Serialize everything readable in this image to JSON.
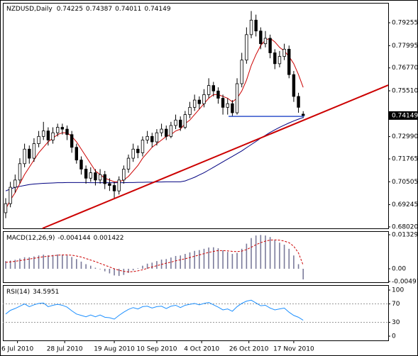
{
  "chart_data": [
    {
      "type": "candlestick",
      "title": "NZDUSD,Daily",
      "candle_color": "#000000",
      "open": [
        0.688,
        0.693,
        0.702,
        0.706,
        0.715,
        0.723,
        0.718,
        0.726,
        0.73,
        0.733,
        0.728,
        0.732,
        0.735,
        0.734,
        0.731,
        0.724,
        0.717,
        0.712,
        0.707,
        0.71,
        0.706,
        0.709,
        0.704,
        0.703,
        0.7,
        0.706,
        0.712,
        0.718,
        0.723,
        0.721,
        0.728,
        0.73,
        0.727,
        0.732,
        0.734,
        0.73,
        0.736,
        0.739,
        0.735,
        0.742,
        0.746,
        0.75,
        0.748,
        0.753,
        0.758,
        0.755,
        0.751,
        0.746,
        0.748,
        0.743,
        0.759,
        0.772,
        0.786,
        0.794,
        0.788,
        0.781,
        0.784,
        0.776,
        0.77,
        0.774,
        0.778,
        0.764,
        0.752,
        0.74225
      ],
      "high": [
        0.696,
        0.705,
        0.709,
        0.718,
        0.726,
        0.725,
        0.729,
        0.733,
        0.738,
        0.735,
        0.735,
        0.737,
        0.737,
        0.736,
        0.733,
        0.726,
        0.719,
        0.714,
        0.713,
        0.712,
        0.712,
        0.711,
        0.707,
        0.705,
        0.708,
        0.714,
        0.72,
        0.726,
        0.725,
        0.73,
        0.733,
        0.732,
        0.734,
        0.737,
        0.736,
        0.738,
        0.742,
        0.741,
        0.744,
        0.749,
        0.753,
        0.752,
        0.756,
        0.762,
        0.76,
        0.757,
        0.753,
        0.751,
        0.75,
        0.762,
        0.776,
        0.79,
        0.799,
        0.797,
        0.79,
        0.788,
        0.786,
        0.778,
        0.777,
        0.781,
        0.78,
        0.766,
        0.754,
        0.74387
      ],
      "low": [
        0.685,
        0.691,
        0.699,
        0.704,
        0.713,
        0.715,
        0.716,
        0.724,
        0.728,
        0.725,
        0.726,
        0.73,
        0.731,
        0.728,
        0.721,
        0.715,
        0.709,
        0.704,
        0.705,
        0.703,
        0.704,
        0.701,
        0.7,
        0.696,
        0.698,
        0.704,
        0.71,
        0.716,
        0.718,
        0.719,
        0.726,
        0.724,
        0.725,
        0.73,
        0.728,
        0.729,
        0.734,
        0.733,
        0.734,
        0.74,
        0.744,
        0.745,
        0.746,
        0.751,
        0.752,
        0.748,
        0.742,
        0.742,
        0.741,
        0.742,
        0.757,
        0.77,
        0.784,
        0.785,
        0.778,
        0.779,
        0.773,
        0.767,
        0.768,
        0.772,
        0.762,
        0.749,
        0.743,
        0.74011
      ],
      "close": [
        0.693,
        0.702,
        0.706,
        0.715,
        0.723,
        0.718,
        0.726,
        0.73,
        0.733,
        0.728,
        0.732,
        0.735,
        0.734,
        0.731,
        0.724,
        0.717,
        0.712,
        0.707,
        0.71,
        0.706,
        0.709,
        0.704,
        0.703,
        0.7,
        0.706,
        0.712,
        0.718,
        0.723,
        0.721,
        0.728,
        0.73,
        0.727,
        0.732,
        0.734,
        0.73,
        0.736,
        0.739,
        0.735,
        0.742,
        0.746,
        0.75,
        0.748,
        0.753,
        0.758,
        0.755,
        0.751,
        0.746,
        0.748,
        0.743,
        0.759,
        0.772,
        0.786,
        0.794,
        0.788,
        0.781,
        0.784,
        0.776,
        0.77,
        0.774,
        0.778,
        0.764,
        0.752,
        0.746,
        0.74149
      ],
      "series": [
        {
          "color": "#000080",
          "values": [
            0.7,
            0.701,
            0.702,
            0.7025,
            0.703,
            0.7035,
            0.7038,
            0.704,
            0.7042,
            0.7043,
            0.7044,
            0.7045,
            0.7045,
            0.7046,
            0.7046,
            0.7046,
            0.7046,
            0.7046,
            0.7045,
            0.7045,
            0.7045,
            0.7045,
            0.7045,
            0.7045,
            0.7045,
            0.7045,
            0.7046,
            0.7046,
            0.7047,
            0.7047,
            0.7048,
            0.7048,
            0.7049,
            0.7049,
            0.705,
            0.705,
            0.705,
            0.705,
            0.7055,
            0.7065,
            0.7075,
            0.7088,
            0.71,
            0.7115,
            0.713,
            0.7145,
            0.716,
            0.7175,
            0.719,
            0.7205,
            0.722,
            0.7238,
            0.7255,
            0.7272,
            0.729,
            0.7306,
            0.7322,
            0.7336,
            0.735,
            0.7362,
            0.7374,
            0.7385,
            0.7395,
            0.7404
          ]
        },
        {
          "color": "#cc0000",
          "values": [
            0.69,
            0.695,
            0.699,
            0.704,
            0.709,
            0.713,
            0.717,
            0.721,
            0.724,
            0.727,
            0.729,
            0.731,
            0.732,
            0.732,
            0.73,
            0.727,
            0.723,
            0.719,
            0.715,
            0.711,
            0.709,
            0.707,
            0.706,
            0.705,
            0.705,
            0.706,
            0.708,
            0.711,
            0.714,
            0.718,
            0.721,
            0.724,
            0.726,
            0.728,
            0.73,
            0.731,
            0.733,
            0.734,
            0.737,
            0.739,
            0.742,
            0.745,
            0.748,
            0.751,
            0.753,
            0.753,
            0.752,
            0.751,
            0.749,
            0.751,
            0.755,
            0.761,
            0.769,
            0.775,
            0.78,
            0.783,
            0.784,
            0.782,
            0.779,
            0.777,
            0.774,
            0.77,
            0.764,
            0.757
          ]
        }
      ],
      "trendline": {
        "color": "#cc0000",
        "x": [
          7.8,
          81
        ],
        "y": [
          0.6794,
          0.7582
        ]
      },
      "support": {
        "color": "#3355cc",
        "x": [
          47.2,
          63.2
        ],
        "y": [
          0.741,
          0.741
        ]
      },
      "xlim": [
        -0.6,
        81
      ],
      "ylim": [
        0.6794,
        0.8035
      ],
      "yticks": [
        0.79255,
        0.77995,
        {
          "value": 0.7677,
          "label": "0.76770"
        },
        {
          "value": 0.7551,
          "label": "0.75510"
        },
        {
          "value": 0.7299,
          "label": "0.72990"
        },
        0.71765,
        0.70505,
        0.69245,
        {
          "value": 0.6802,
          "label": "0.68020"
        }
      ],
      "xticks": [
        {
          "value": 2.5,
          "label": "6 Jul 2010"
        },
        {
          "value": 12.5,
          "label": "28 Jul 2010"
        },
        {
          "value": 23,
          "label": "19 Aug 2010"
        },
        {
          "value": 32,
          "label": "10 Sep 2010"
        },
        {
          "value": 41.5,
          "label": "4 Oct 2010"
        },
        {
          "value": 51.5,
          "label": "26 Oct 2010"
        },
        {
          "value": 61,
          "label": "17 Nov 2010"
        }
      ]
    },
    {
      "type": "macd",
      "title": "MACD(12,26,9)",
      "histogram": {
        "color": "#7a7a9a",
        "values": [
          0.003,
          0.0032,
          0.0035,
          0.004,
          0.0045,
          0.0045,
          0.0048,
          0.0052,
          0.0055,
          0.0053,
          0.0054,
          0.0056,
          0.0055,
          0.0052,
          0.0046,
          0.0038,
          0.0028,
          0.0018,
          0.0012,
          0.0004,
          -0.0002,
          -0.001,
          -0.0018,
          -0.0026,
          -0.0028,
          -0.0024,
          -0.0016,
          -0.0006,
          0.0002,
          0.0012,
          0.002,
          0.0024,
          0.003,
          0.0036,
          0.0038,
          0.0044,
          0.005,
          0.0052,
          0.0058,
          0.0064,
          0.007,
          0.0073,
          0.0078,
          0.0083,
          0.0084,
          0.008,
          0.0072,
          0.0066,
          0.0058,
          0.0062,
          0.0078,
          0.0098,
          0.012,
          0.013,
          0.0132,
          0.013,
          0.0124,
          0.0112,
          0.0102,
          0.0094,
          0.0078,
          0.0052,
          0.0018,
          -0.004144
        ]
      },
      "signal": {
        "color": "#cc0000",
        "values": [
          0.0025,
          0.0027,
          0.0029,
          0.0032,
          0.0035,
          0.0038,
          0.0041,
          0.0044,
          0.0047,
          0.0049,
          0.0051,
          0.0053,
          0.0054,
          0.0054,
          0.0053,
          0.005,
          0.0046,
          0.004,
          0.0034,
          0.0028,
          0.0021,
          0.0014,
          0.0007,
          0.0,
          -0.0006,
          -0.001,
          -0.0012,
          -0.0011,
          -0.0008,
          -0.0004,
          0.0002,
          0.0007,
          0.0012,
          0.0017,
          0.0022,
          0.0026,
          0.0031,
          0.0035,
          0.0039,
          0.0044,
          0.0049,
          0.0054,
          0.0059,
          0.0064,
          0.0068,
          0.0071,
          0.0071,
          0.007,
          0.0068,
          0.0067,
          0.0069,
          0.0075,
          0.0084,
          0.0094,
          0.0102,
          0.0108,
          0.0112,
          0.0113,
          0.0112,
          0.0108,
          0.0102,
          0.0088,
          0.0062,
          0.001422
        ]
      },
      "ylim": [
        -0.00526,
        0.01468
      ],
      "yticks": [
        0.013292,
        {
          "value": 0,
          "label": "0.00"
        },
        -0.00497
      ]
    },
    {
      "type": "rsi",
      "title": "RSI(14)",
      "series": [
        {
          "color": "#1e90ff",
          "values": [
            48,
            56,
            60,
            65,
            70,
            64,
            68,
            71,
            72,
            64,
            67,
            69,
            67,
            63,
            55,
            48,
            45,
            42,
            46,
            42,
            46,
            41,
            40,
            37,
            45,
            52,
            58,
            62,
            59,
            64,
            65,
            61,
            64,
            65,
            60,
            65,
            67,
            62,
            67,
            69,
            71,
            68,
            71,
            73,
            68,
            63,
            57,
            59,
            54,
            64,
            71,
            76,
            78,
            72,
            66,
            67,
            61,
            57,
            59,
            61,
            52,
            45,
            41,
            34.5951
          ]
        }
      ],
      "levels": [
        70,
        30
      ],
      "level_color": "#999999",
      "ylim": [
        -9.2,
        110.8
      ],
      "yticks": [
        100,
        70,
        30,
        0
      ]
    }
  ]
}
